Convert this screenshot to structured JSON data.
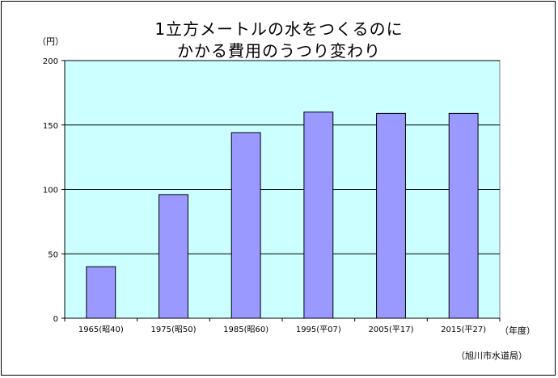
{
  "chart_data": {
    "type": "bar",
    "title_lines": [
      "1立方メートルの水をつくるのに",
      "かかる費用のうつり変わり"
    ],
    "ylabel": "（円）",
    "xlabel": "（年度）",
    "source": "（旭川市水道局）",
    "categories": [
      "1965(昭40)",
      "1975(昭50)",
      "1985(昭60)",
      "1995(平07)",
      "2005(平17)",
      "2015(平27)"
    ],
    "values": [
      40,
      96,
      144,
      160,
      159,
      159
    ],
    "ylim": [
      0,
      200
    ],
    "yticks": [
      "0",
      "50",
      "100",
      "150",
      "200"
    ],
    "grid": true,
    "colors": {
      "bar": "#9999ff",
      "plot_bg": "#ccffff",
      "bar_edge": "#000000"
    }
  }
}
